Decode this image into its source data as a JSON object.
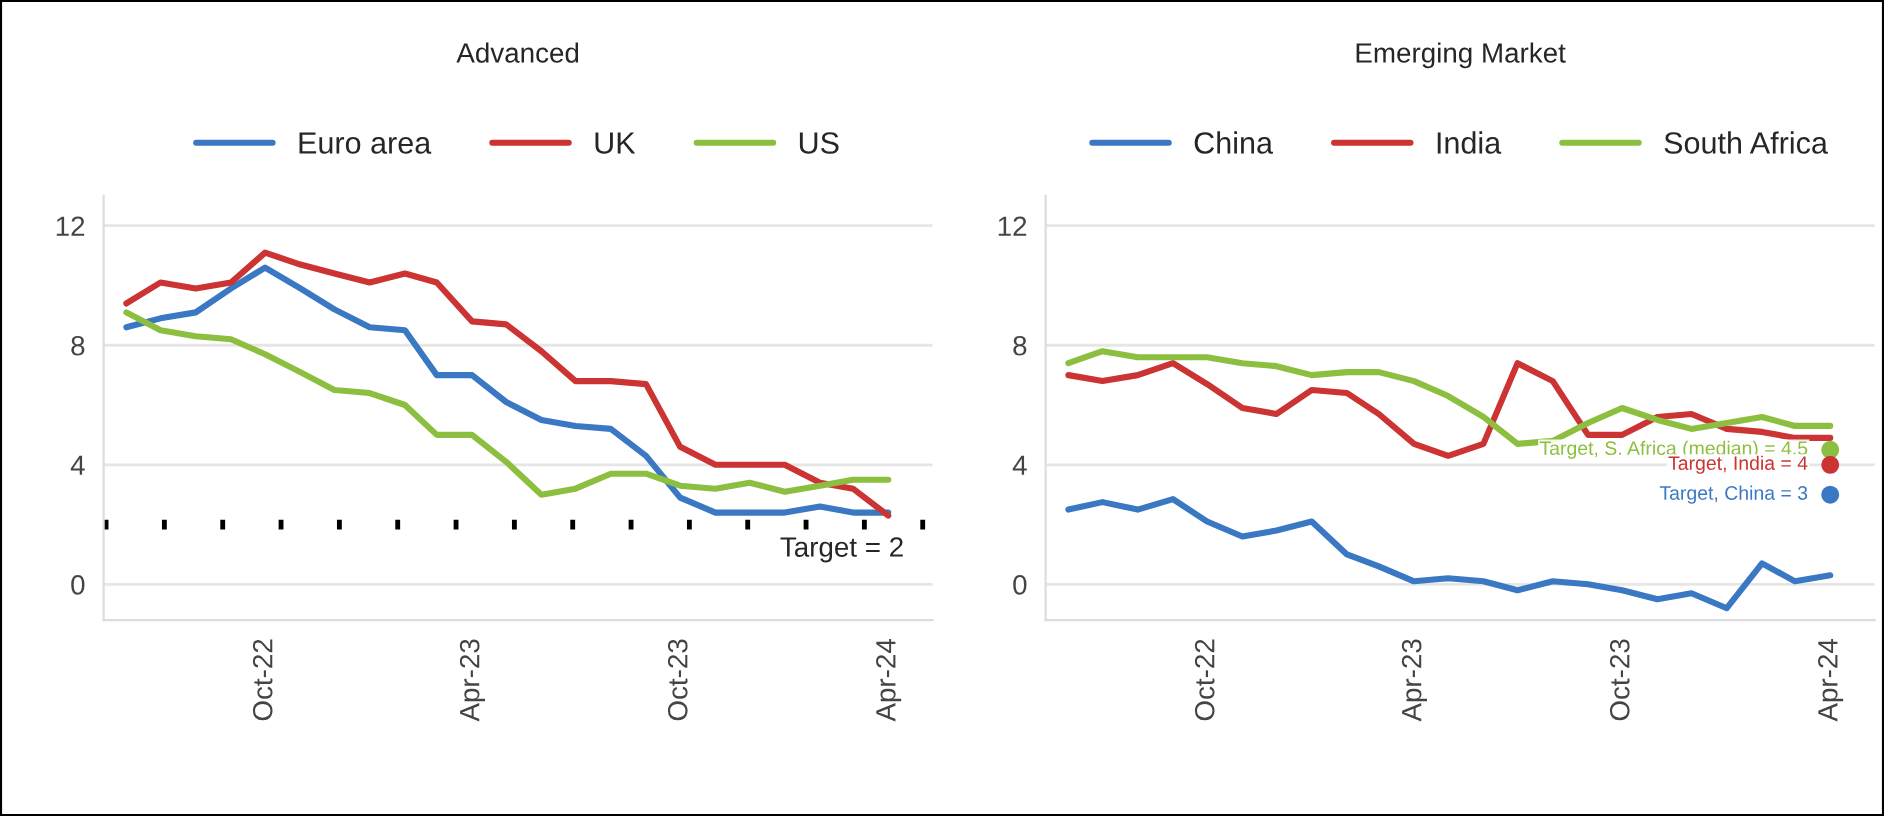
{
  "chart_data": [
    {
      "type": "line",
      "title": "Advanced",
      "x": [
        "2022-06",
        "2022-07",
        "2022-08",
        "2022-09",
        "2022-10",
        "2022-11",
        "2022-12",
        "2023-01",
        "2023-02",
        "2023-03",
        "2023-04",
        "2023-05",
        "2023-06",
        "2023-07",
        "2023-08",
        "2023-09",
        "2023-10",
        "2023-11",
        "2023-12",
        "2024-01",
        "2024-02",
        "2024-03",
        "2024-04"
      ],
      "series": [
        {
          "name": "Euro area",
          "color": "#3a78c4",
          "values": [
            8.6,
            8.9,
            9.1,
            9.9,
            10.6,
            9.9,
            9.2,
            8.6,
            8.5,
            7.0,
            7.0,
            6.1,
            5.5,
            5.3,
            5.2,
            4.3,
            2.9,
            2.4,
            2.4,
            2.4,
            2.6,
            2.4,
            2.4
          ]
        },
        {
          "name": "UK",
          "color": "#cc3333",
          "values": [
            9.4,
            10.1,
            9.9,
            10.1,
            11.1,
            10.7,
            10.4,
            10.1,
            10.4,
            10.1,
            8.8,
            8.7,
            7.8,
            6.8,
            6.8,
            6.7,
            4.6,
            4.0,
            4.0,
            4.0,
            3.4,
            3.2,
            2.3
          ]
        },
        {
          "name": "US",
          "color": "#8cbf3f",
          "values": [
            9.1,
            8.5,
            8.3,
            8.2,
            7.7,
            7.1,
            6.5,
            6.4,
            6.0,
            5.0,
            5.0,
            4.1,
            3.0,
            3.2,
            3.7,
            3.7,
            3.3,
            3.2,
            3.4,
            3.1,
            3.3,
            3.5,
            3.5
          ]
        }
      ],
      "ref_lines": [
        {
          "axis": "y",
          "value": 2,
          "label": "Target = 2",
          "color": "#000000",
          "line_style": "dotted"
        }
      ],
      "xlim": [
        "2022-05-12",
        "2024-05-10"
      ],
      "ylim": [
        -1.2,
        13
      ],
      "xticks": [
        {
          "value": "2022-10",
          "label": "Oct-22"
        },
        {
          "value": "2023-04",
          "label": "Apr-23"
        },
        {
          "value": "2023-10",
          "label": "Oct-23"
        },
        {
          "value": "2024-04",
          "label": "Apr-24"
        }
      ],
      "yticks": [
        0,
        4,
        8,
        12
      ],
      "grid": "y",
      "legend": "top",
      "marker": "none",
      "line_style": "solid"
    },
    {
      "type": "line",
      "title": "Emerging Market",
      "x": [
        "2022-06",
        "2022-07",
        "2022-08",
        "2022-09",
        "2022-10",
        "2022-11",
        "2022-12",
        "2023-01",
        "2023-02",
        "2023-03",
        "2023-04",
        "2023-05",
        "2023-06",
        "2023-07",
        "2023-08",
        "2023-09",
        "2023-10",
        "2023-11",
        "2023-12",
        "2024-01",
        "2024-02",
        "2024-03",
        "2024-04"
      ],
      "series": [
        {
          "name": "China",
          "color": "#3a78c4",
          "values": [
            2.5,
            2.75,
            2.5,
            2.85,
            2.1,
            1.6,
            1.8,
            2.1,
            1.0,
            0.6,
            0.1,
            0.2,
            0.1,
            -0.2,
            0.1,
            0.0,
            -0.2,
            -0.5,
            -0.3,
            -0.8,
            0.7,
            0.1,
            0.3
          ]
        },
        {
          "name": "India",
          "color": "#cc3333",
          "values": [
            7.0,
            6.8,
            7.0,
            7.4,
            6.7,
            5.9,
            5.7,
            6.5,
            6.4,
            5.7,
            4.7,
            4.3,
            4.7,
            7.4,
            6.8,
            5.0,
            5.0,
            5.6,
            5.7,
            5.2,
            5.1,
            4.9,
            4.9
          ]
        },
        {
          "name": "South Africa",
          "color": "#8cbf3f",
          "values": [
            7.4,
            7.8,
            7.6,
            7.6,
            7.6,
            7.4,
            7.3,
            7.0,
            7.1,
            7.1,
            6.8,
            6.3,
            5.6,
            4.7,
            4.8,
            5.4,
            5.9,
            5.5,
            5.2,
            5.4,
            5.6,
            5.3,
            5.3
          ]
        },
        {
          "type": "scatter",
          "marker": "circle",
          "color": "#8cbf3f",
          "x": [
            "2024-04"
          ],
          "values": [
            4.5
          ]
        },
        {
          "type": "scatter",
          "marker": "circle",
          "color": "#cc3333",
          "x": [
            "2024-04"
          ],
          "values": [
            4
          ]
        },
        {
          "type": "scatter",
          "marker": "circle",
          "color": "#3a78c4",
          "x": [
            "2024-04"
          ],
          "values": [
            3
          ]
        }
      ],
      "annotations": [
        {
          "text": "Target, S. Africa (median) = 4.5",
          "x": "2024-04",
          "y": 4.5
        },
        {
          "text": "Target, India = 4",
          "x": "2024-04",
          "y": 4
        },
        {
          "text": "Target, China = 3",
          "x": "2024-04",
          "y": 3
        }
      ],
      "xlim": [
        "2022-05-12",
        "2024-05-10"
      ],
      "ylim": [
        -1.2,
        13
      ],
      "xticks": [
        {
          "value": "2022-10",
          "label": "Oct-22"
        },
        {
          "value": "2023-04",
          "label": "Apr-23"
        },
        {
          "value": "2023-10",
          "label": "Oct-23"
        },
        {
          "value": "2024-04",
          "label": "Apr-24"
        }
      ],
      "yticks": [
        0,
        4,
        8,
        12
      ],
      "grid": "y",
      "legend": "top",
      "marker": "none",
      "line_style": "solid"
    }
  ]
}
